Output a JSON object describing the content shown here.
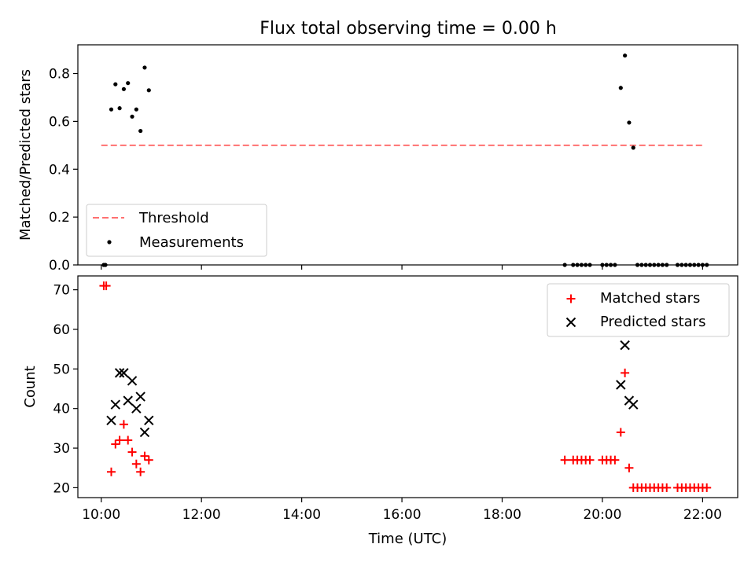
{
  "figure": {
    "title": "Flux total observing time = 0.00 h"
  },
  "chart_data": [
    {
      "type": "scatter",
      "panel": "top",
      "title": "Flux total observing time = 0.00 h",
      "xlabel": "",
      "ylabel": "Matched/Predicted stars",
      "xlim": [
        "09:32",
        "22:42"
      ],
      "ylim": [
        0,
        0.92
      ],
      "y_ticks": [
        0.0,
        0.2,
        0.4,
        0.6,
        0.8
      ],
      "y_tick_labels": [
        "0.0",
        "0.2",
        "0.4",
        "0.6",
        "0.8"
      ],
      "legend_position": "lower-left",
      "threshold": {
        "name": "Threshold",
        "value": 0.5,
        "x_range": [
          "10:00",
          "22:00"
        ],
        "color": "#ff7070",
        "style": "dashed"
      },
      "series": [
        {
          "name": "Measurements",
          "marker": "dot",
          "color": "#000000",
          "points": [
            [
              "10:03",
              0.0
            ],
            [
              "10:05",
              0.0
            ],
            [
              "10:12",
              0.65
            ],
            [
              "10:17",
              0.755
            ],
            [
              "10:22",
              0.655
            ],
            [
              "10:27",
              0.735
            ],
            [
              "10:32",
              0.76
            ],
            [
              "10:37",
              0.62
            ],
            [
              "10:42",
              0.65
            ],
            [
              "10:47",
              0.56
            ],
            [
              "10:52",
              0.825
            ],
            [
              "10:57",
              0.73
            ],
            [
              "19:15",
              0.0
            ],
            [
              "19:25",
              0.0
            ],
            [
              "19:30",
              0.0
            ],
            [
              "19:35",
              0.0
            ],
            [
              "19:40",
              0.0
            ],
            [
              "19:45",
              0.0
            ],
            [
              "20:00",
              0.0
            ],
            [
              "20:05",
              0.0
            ],
            [
              "20:10",
              0.0
            ],
            [
              "20:15",
              0.0
            ],
            [
              "20:22",
              0.74
            ],
            [
              "20:27",
              0.875
            ],
            [
              "20:32",
              0.595
            ],
            [
              "20:37",
              0.49
            ],
            [
              "20:42",
              0.0
            ],
            [
              "20:47",
              0.0
            ],
            [
              "20:52",
              0.0
            ],
            [
              "20:57",
              0.0
            ],
            [
              "21:02",
              0.0
            ],
            [
              "21:07",
              0.0
            ],
            [
              "21:12",
              0.0
            ],
            [
              "21:17",
              0.0
            ],
            [
              "21:30",
              0.0
            ],
            [
              "21:35",
              0.0
            ],
            [
              "21:40",
              0.0
            ],
            [
              "21:45",
              0.0
            ],
            [
              "21:50",
              0.0
            ],
            [
              "21:55",
              0.0
            ],
            [
              "22:00",
              0.0
            ],
            [
              "22:05",
              0.0
            ]
          ]
        }
      ]
    },
    {
      "type": "scatter",
      "panel": "bottom",
      "xlabel": "Time (UTC)",
      "ylabel": "Count",
      "xlim": [
        "09:32",
        "22:42"
      ],
      "ylim": [
        17.5,
        73.5
      ],
      "x_ticks": [
        "10:00",
        "12:00",
        "14:00",
        "16:00",
        "18:00",
        "20:00",
        "22:00"
      ],
      "x_tick_labels": [
        "10:00",
        "12:00",
        "14:00",
        "16:00",
        "18:00",
        "20:00",
        "22:00"
      ],
      "y_ticks": [
        20,
        30,
        40,
        50,
        60,
        70
      ],
      "y_tick_labels": [
        "20",
        "30",
        "40",
        "50",
        "60",
        "70"
      ],
      "legend_position": "upper-right",
      "series": [
        {
          "name": "Matched stars",
          "marker": "plus",
          "color": "#ff0000",
          "points": [
            [
              "10:03",
              71
            ],
            [
              "10:06",
              71
            ],
            [
              "10:12",
              24
            ],
            [
              "10:17",
              31
            ],
            [
              "10:22",
              32
            ],
            [
              "10:27",
              36
            ],
            [
              "10:32",
              32
            ],
            [
              "10:37",
              29
            ],
            [
              "10:42",
              26
            ],
            [
              "10:47",
              24
            ],
            [
              "10:52",
              28
            ],
            [
              "10:57",
              27
            ],
            [
              "19:15",
              27
            ],
            [
              "19:25",
              27
            ],
            [
              "19:30",
              27
            ],
            [
              "19:35",
              27
            ],
            [
              "19:40",
              27
            ],
            [
              "19:45",
              27
            ],
            [
              "20:00",
              27
            ],
            [
              "20:05",
              27
            ],
            [
              "20:10",
              27
            ],
            [
              "20:15",
              27
            ],
            [
              "20:22",
              34
            ],
            [
              "20:27",
              49
            ],
            [
              "20:32",
              25
            ],
            [
              "20:37",
              20
            ],
            [
              "20:42",
              20
            ],
            [
              "20:47",
              20
            ],
            [
              "20:52",
              20
            ],
            [
              "20:57",
              20
            ],
            [
              "21:02",
              20
            ],
            [
              "21:07",
              20
            ],
            [
              "21:12",
              20
            ],
            [
              "21:17",
              20
            ],
            [
              "21:30",
              20
            ],
            [
              "21:35",
              20
            ],
            [
              "21:40",
              20
            ],
            [
              "21:45",
              20
            ],
            [
              "21:50",
              20
            ],
            [
              "21:55",
              20
            ],
            [
              "22:00",
              20
            ],
            [
              "22:05",
              20
            ]
          ]
        },
        {
          "name": "Predicted stars",
          "marker": "x",
          "color": "#000000",
          "points": [
            [
              "10:12",
              37
            ],
            [
              "10:17",
              41
            ],
            [
              "10:22",
              49
            ],
            [
              "10:27",
              49
            ],
            [
              "10:32",
              42
            ],
            [
              "10:37",
              47
            ],
            [
              "10:42",
              40
            ],
            [
              "10:47",
              43
            ],
            [
              "10:52",
              34
            ],
            [
              "10:57",
              37
            ],
            [
              "20:22",
              46
            ],
            [
              "20:27",
              56
            ],
            [
              "20:32",
              42
            ],
            [
              "20:37",
              41
            ]
          ]
        }
      ]
    }
  ]
}
